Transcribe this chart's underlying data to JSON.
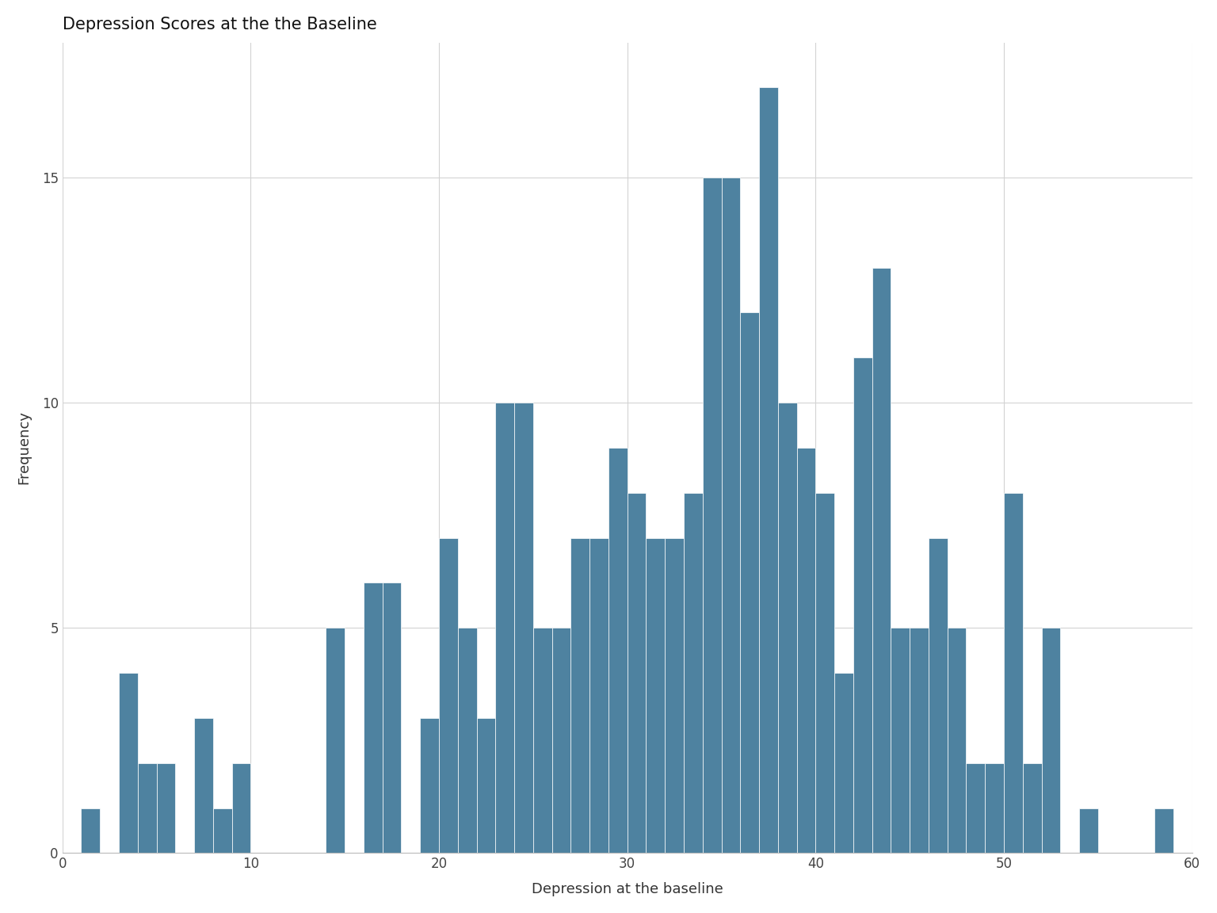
{
  "title": "Depression Scores at the the Baseline",
  "xlabel": "Depression at the baseline",
  "ylabel": "Frequency",
  "bar_color": "#4e82a0",
  "background_color": "#ffffff",
  "plot_background": "#ffffff",
  "grid_color": "#d3d3d3",
  "xlim": [
    0,
    60
  ],
  "ylim": [
    0,
    18
  ],
  "xticks": [
    0,
    10,
    20,
    30,
    40,
    50,
    60
  ],
  "yticks": [
    0,
    5,
    10,
    15
  ],
  "title_fontsize": 15,
  "axis_label_fontsize": 13,
  "tick_fontsize": 12,
  "bin_left_edges": [
    1,
    2,
    3,
    4,
    5,
    6,
    7,
    8,
    9,
    10,
    11,
    12,
    13,
    14,
    15,
    16,
    17,
    18,
    19,
    20,
    21,
    22,
    23,
    24,
    25,
    26,
    27,
    28,
    29,
    30,
    31,
    32,
    33,
    34,
    35,
    36,
    37,
    38,
    39,
    40,
    41,
    42,
    43,
    44,
    45,
    46,
    47,
    48,
    49,
    50,
    51,
    52,
    53,
    54,
    55,
    56,
    57,
    58
  ],
  "bin_counts": [
    1,
    0,
    4,
    2,
    2,
    0,
    3,
    1,
    2,
    0,
    0,
    0,
    0,
    5,
    0,
    6,
    6,
    0,
    3,
    7,
    5,
    3,
    10,
    10,
    5,
    5,
    7,
    7,
    9,
    8,
    7,
    7,
    8,
    15,
    15,
    12,
    17,
    10,
    9,
    8,
    4,
    11,
    13,
    5,
    5,
    7,
    5,
    2,
    2,
    8,
    2,
    5,
    0,
    1,
    0,
    0,
    0,
    1
  ],
  "bin_width": 1,
  "edgecolor": "#ffffff",
  "linewidth": 0.5
}
